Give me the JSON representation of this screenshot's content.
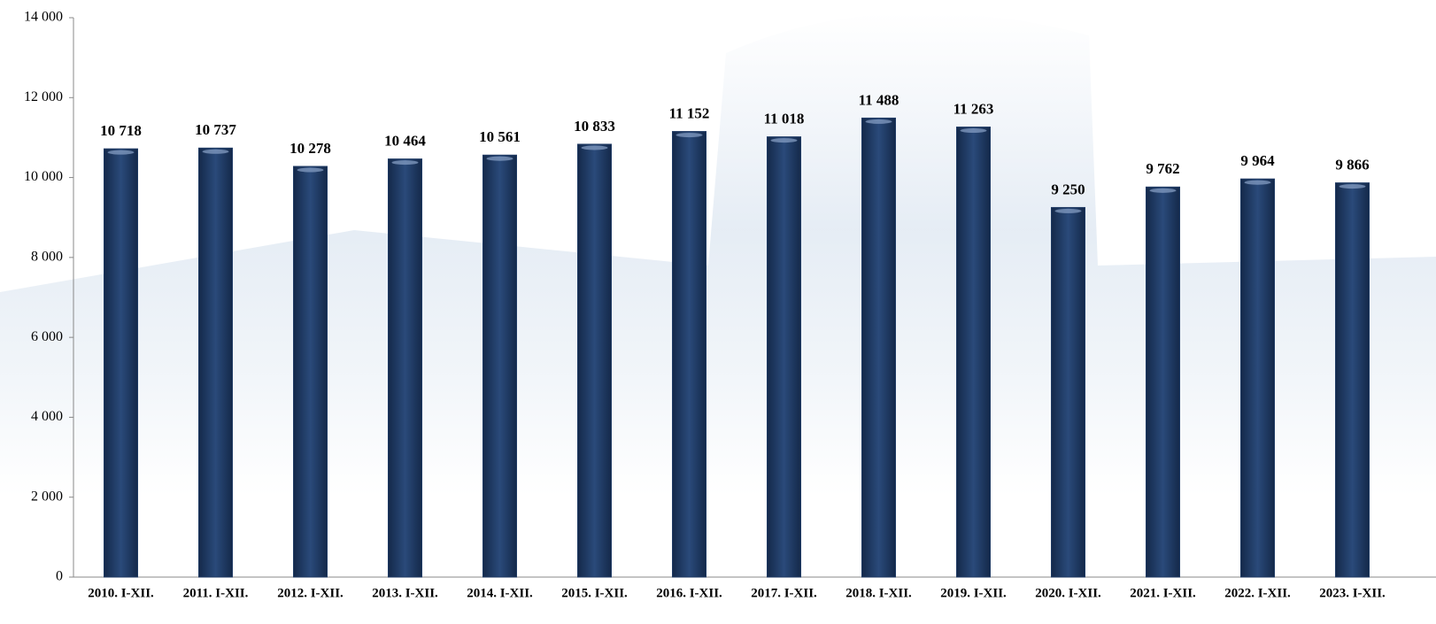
{
  "chart_data": {
    "type": "bar",
    "categories": [
      "2010. I-XII.",
      "2011. I-XII.",
      "2012. I-XII.",
      "2013. I-XII.",
      "2014. I-XII.",
      "2015. I-XII.",
      "2016. I-XII.",
      "2017. I-XII.",
      "2018. I-XII.",
      "2019. I-XII.",
      "2020. I-XII.",
      "2021. I-XII.",
      "2022. I-XII.",
      "2023. I-XII."
    ],
    "values": [
      10718,
      10737,
      10278,
      10464,
      10561,
      10833,
      11152,
      11018,
      11488,
      11263,
      9250,
      9762,
      9964,
      9866
    ],
    "value_labels": [
      "10 718",
      "10 737",
      "10 278",
      "10 464",
      "10 561",
      "10 833",
      "11 152",
      "11 018",
      "11 488",
      "11 263",
      "9 250",
      "9 762",
      "9 964",
      "9 866"
    ],
    "color": "#1f3a63",
    "ylim": [
      0,
      14000
    ],
    "yticks": [
      0,
      {
        "value": 2000,
        "label": "2 000"
      },
      {
        "value": 4000,
        "label": "4 000"
      },
      {
        "value": 6000,
        "label": "6 000"
      },
      {
        "value": 8000,
        "label": "8 000"
      },
      {
        "value": 10000,
        "label": "10 000"
      },
      {
        "value": 12000,
        "label": "12 000"
      },
      {
        "value": 14000,
        "label": "14 000"
      }
    ],
    "grid": false
  }
}
